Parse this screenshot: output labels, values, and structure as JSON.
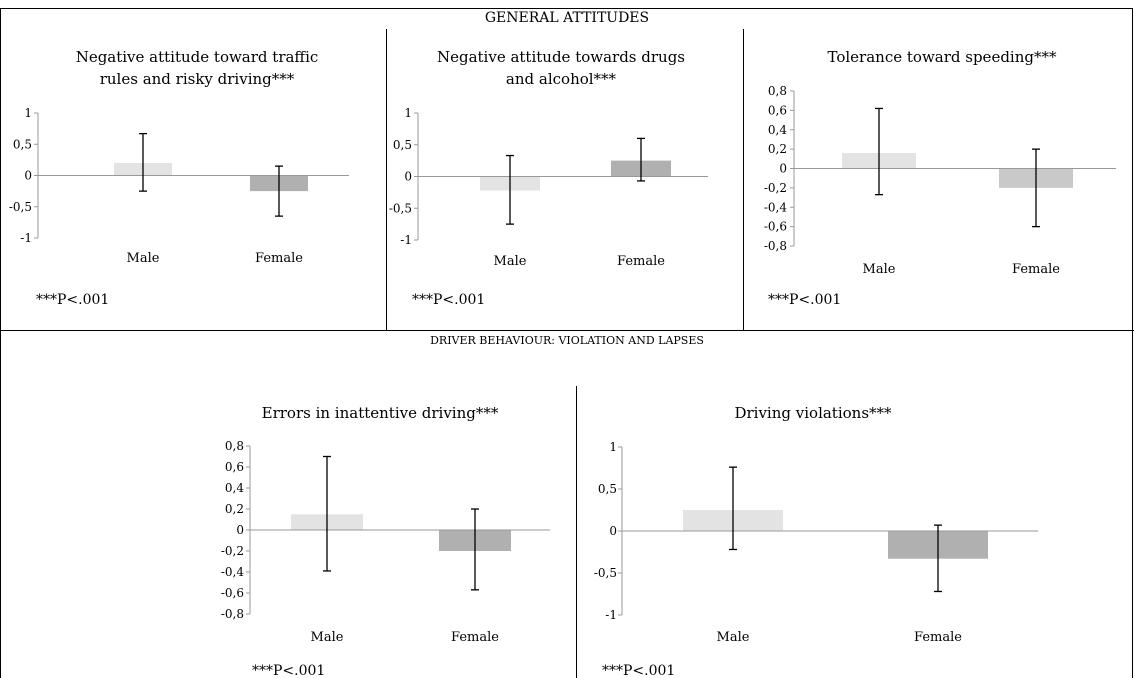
{
  "sections": {
    "general_title": "GENERAL ATTITUDES",
    "behaviour_title": "DRIVER BEHAVIOUR: VIOLATION AND LAPSES"
  },
  "colors": {
    "male_bar": "#e3e3e3",
    "female_bar": "#b0b0b0",
    "female_bar_light": "#c9c9c9",
    "axis": "#999999",
    "error_bar": "#000000",
    "border": "#000000"
  },
  "chart_data": [
    {
      "type": "bar",
      "title": [
        "Negative attitude toward traffic",
        "rules and risky driving***"
      ],
      "categories": [
        "Male",
        "Female"
      ],
      "values": [
        0.2,
        -0.25
      ],
      "error_low": [
        -0.25,
        -0.65
      ],
      "error_high": [
        0.67,
        0.15
      ],
      "ylim": [
        -1,
        1
      ],
      "yticks": [
        "1",
        "0,5",
        "0",
        "-0,5",
        "-1"
      ],
      "ytick_values": [
        1,
        0.5,
        0,
        -0.5,
        -1
      ],
      "note": "***P<.001",
      "grid": false,
      "legend": "none"
    },
    {
      "type": "bar",
      "title": [
        "Negative attitude towards drugs",
        "and alcohol***"
      ],
      "categories": [
        "Male",
        "Female"
      ],
      "values": [
        -0.22,
        0.25
      ],
      "error_low": [
        -0.75,
        -0.07
      ],
      "error_high": [
        0.33,
        0.6
      ],
      "ylim": [
        -1,
        1
      ],
      "yticks": [
        "1",
        "0,5",
        "0",
        "-0,5",
        "-1"
      ],
      "ytick_values": [
        1,
        0.5,
        0,
        -0.5,
        -1
      ],
      "note": "***P<.001",
      "grid": false,
      "legend": "none"
    },
    {
      "type": "bar",
      "title": [
        "Tolerance toward speeding***"
      ],
      "categories": [
        "Male",
        "Female"
      ],
      "values": [
        0.16,
        -0.2
      ],
      "error_low": [
        -0.27,
        -0.6
      ],
      "error_high": [
        0.62,
        0.2
      ],
      "ylim": [
        -0.8,
        0.8
      ],
      "yticks": [
        "0,8",
        "0,6",
        "0,4",
        "0,2",
        "0",
        "-0,2",
        "-0,4",
        "-0,6",
        "-0,8"
      ],
      "ytick_values": [
        0.8,
        0.6,
        0.4,
        0.2,
        0,
        -0.2,
        -0.4,
        -0.6,
        -0.8
      ],
      "note": "***P<.001",
      "grid": false,
      "legend": "none"
    },
    {
      "type": "bar",
      "title": [
        "Errors in inattentive driving***"
      ],
      "categories": [
        "Male",
        "Female"
      ],
      "values": [
        0.15,
        -0.2
      ],
      "error_low": [
        -0.39,
        -0.57
      ],
      "error_high": [
        0.7,
        0.2
      ],
      "ylim": [
        -0.8,
        0.8
      ],
      "yticks": [
        "0,8",
        "0,6",
        "0,4",
        "0,2",
        "0",
        "-0,2",
        "-0,4",
        "-0,6",
        "-0,8"
      ],
      "ytick_values": [
        0.8,
        0.6,
        0.4,
        0.2,
        0,
        -0.2,
        -0.4,
        -0.6,
        -0.8
      ],
      "note": "***P<.001",
      "grid": false,
      "legend": "none"
    },
    {
      "type": "bar",
      "title": [
        "Driving violations***"
      ],
      "categories": [
        "Male",
        "Female"
      ],
      "values": [
        0.25,
        -0.33
      ],
      "error_low": [
        -0.22,
        -0.72
      ],
      "error_high": [
        0.76,
        0.07
      ],
      "ylim": [
        -1,
        1
      ],
      "yticks": [
        "1",
        "0,5",
        "0",
        "-0,5",
        "-1"
      ],
      "ytick_values": [
        1,
        0.5,
        0,
        -0.5,
        -1
      ],
      "note": "***P<.001",
      "grid": false,
      "legend": "none"
    }
  ]
}
